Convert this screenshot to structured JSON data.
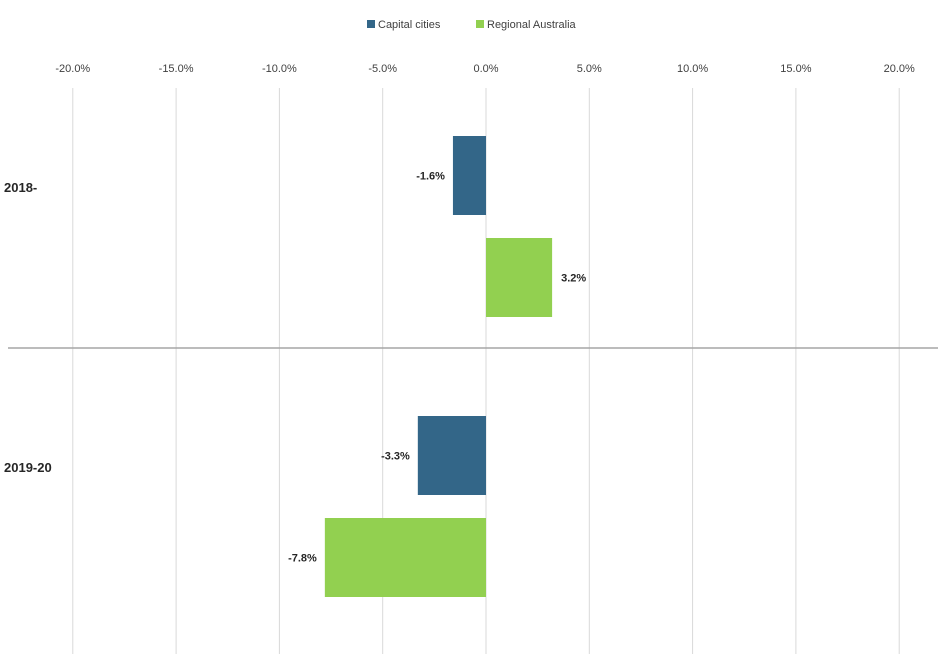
{
  "chart_data": {
    "type": "bar",
    "orientation": "horizontal",
    "categories": [
      "2018-",
      "2019-20"
    ],
    "series": [
      {
        "name": "Capital cities",
        "values": [
          -1.6,
          -3.3
        ],
        "labels": [
          "-1.6%",
          "-3.3%"
        ]
      },
      {
        "name": "Regional Australia",
        "values": [
          3.2,
          -7.8
        ],
        "labels": [
          "3.2%",
          "-7.8%"
        ]
      }
    ],
    "x_ticks": [
      -20,
      -15,
      -10,
      -5,
      0,
      5,
      10,
      15,
      20
    ],
    "x_tick_labels": [
      "-20.0%",
      "-15.0%",
      "-10.0%",
      "-5.0%",
      "0.0%",
      "5.0%",
      "10.0%",
      "15.0%",
      "20.0%"
    ],
    "xlim": [
      -20,
      20
    ],
    "x_axis_position": "top",
    "grid": true,
    "legend_position": "top-center",
    "colors": {
      "Capital cities": "#336688",
      "Regional Australia": "#92d050",
      "grid": "#d9d9d9",
      "separator": "#a6a6a6"
    },
    "title": "",
    "xlabel": "",
    "ylabel": ""
  }
}
